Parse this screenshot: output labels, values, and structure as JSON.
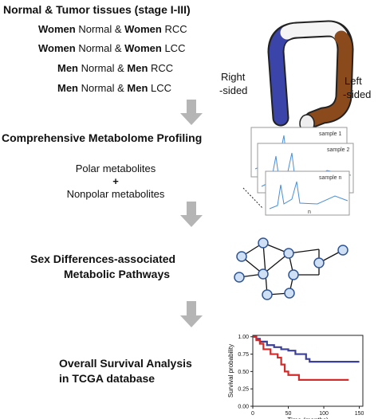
{
  "header": {
    "title": "Normal & Tumor tissues (stage I-III)"
  },
  "comparisons": [
    {
      "sex1": "Women",
      "mid": " Normal & ",
      "sex2": "Women",
      "group": " RCC"
    },
    {
      "sex1": "Women",
      "mid": " Normal & ",
      "sex2": "Women",
      "group": " LCC"
    },
    {
      "sex1": "Men",
      "mid": " Normal & ",
      "sex2": "Men",
      "group": " RCC"
    },
    {
      "sex1": "Men",
      "mid": " Normal & ",
      "sex2": "Men",
      "group": " LCC"
    }
  ],
  "colon_labels": {
    "right": [
      "Right",
      "-sided"
    ],
    "left": [
      "Left",
      "-sided"
    ]
  },
  "profiling": {
    "title": "Comprehensive Metabolome Profiling",
    "lines": [
      "Polar metabolites",
      "+",
      "Nonpolar metabolites"
    ],
    "samples": [
      "sample 1",
      "sample 2",
      "sample n"
    ],
    "axis_n": "n"
  },
  "pathways": {
    "lines": [
      "Sex Differences-associated",
      "Metabolic Pathways"
    ]
  },
  "survival": {
    "lines": [
      "Overall Survival Analysis",
      "in TCGA database"
    ],
    "plot": {
      "type": "line",
      "step": true,
      "x_label": "Time (months)",
      "y_label": "Survival probability",
      "xlim": [
        0,
        155
      ],
      "ylim": [
        0,
        1.02
      ],
      "xticks": [
        0,
        50,
        100,
        150
      ],
      "yticks": [
        {
          "value": 0,
          "label": "0.00"
        },
        {
          "value": 0.25,
          "label": "0.25"
        },
        {
          "value": 0.5,
          "label": "0.50"
        },
        {
          "value": 0.75,
          "label": "0.75"
        },
        {
          "value": 1,
          "label": "1.00"
        }
      ],
      "series": [
        {
          "color": "#3c3f96",
          "x": [
            0,
            5,
            10,
            20,
            30,
            40,
            50,
            60,
            75,
            80,
            150
          ],
          "values": [
            1,
            0.97,
            0.93,
            0.88,
            0.85,
            0.82,
            0.8,
            0.75,
            0.68,
            0.64,
            0.64
          ]
        },
        {
          "color": "#d42a2a",
          "x": [
            0,
            5,
            10,
            15,
            25,
            35,
            40,
            45,
            50,
            60,
            65,
            80,
            135
          ],
          "values": [
            1,
            0.95,
            0.9,
            0.82,
            0.75,
            0.7,
            0.6,
            0.5,
            0.45,
            0.45,
            0.38,
            0.38,
            0.38
          ]
        }
      ]
    }
  }
}
